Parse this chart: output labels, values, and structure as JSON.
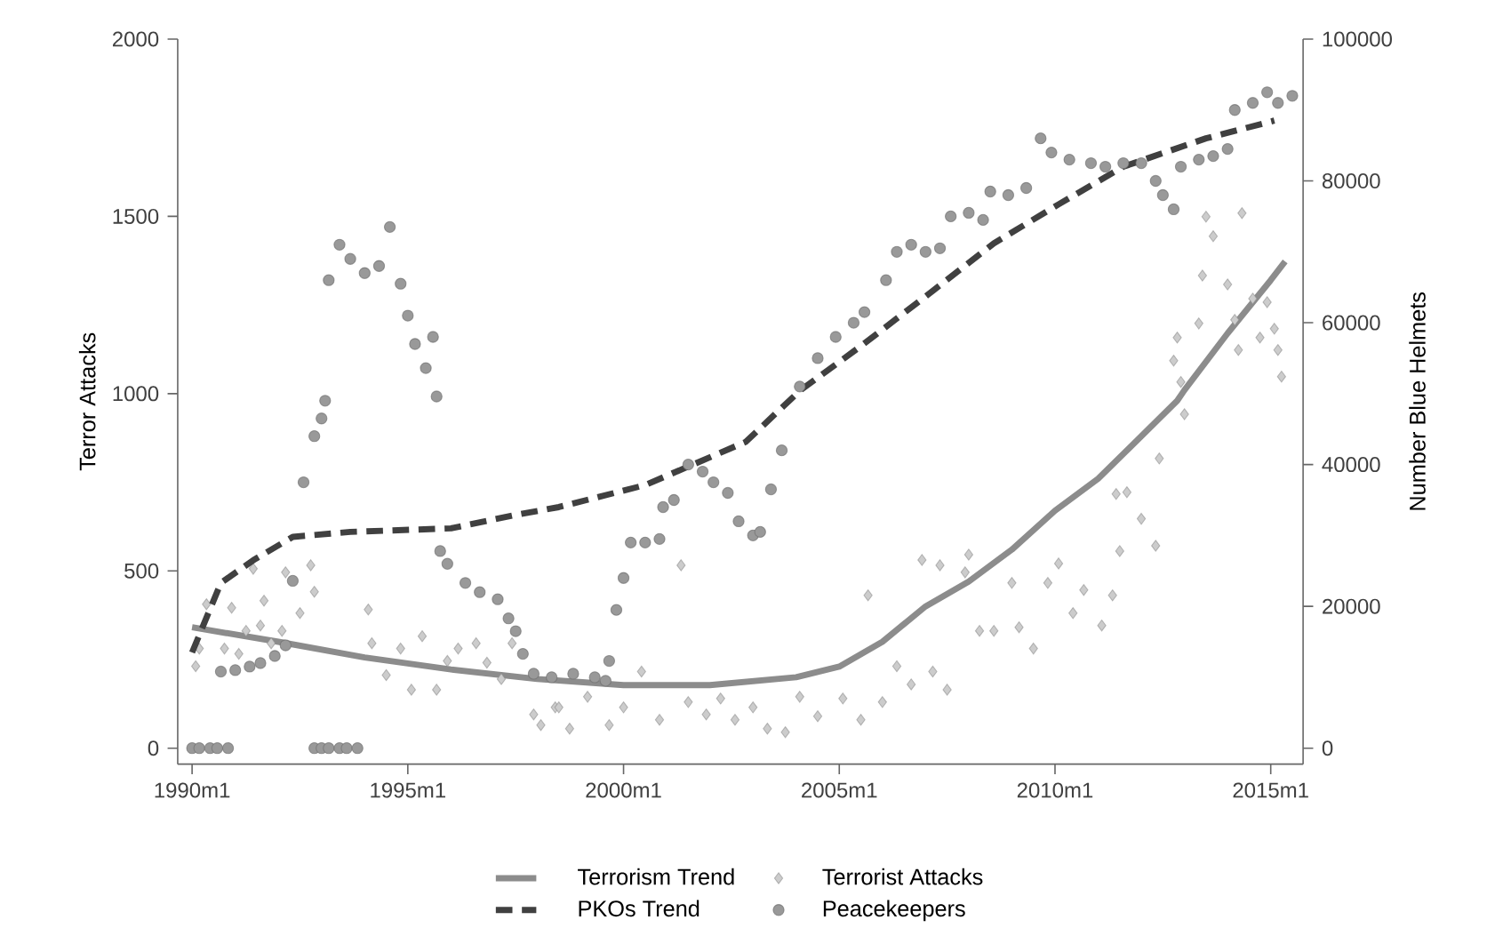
{
  "chart_data": {
    "type": "line",
    "ylabel": "Terror Attacks",
    "y2label": "Number Blue Helmets",
    "xlim": [
      "1989-09",
      "2015-10"
    ],
    "ylim": [
      -45,
      2000
    ],
    "y2lim": [
      -2250,
      100000
    ],
    "xticks": [
      {
        "value": "1990-01",
        "label": "1990m1"
      },
      {
        "value": "1995-01",
        "label": "1995m1"
      },
      {
        "value": "2000-01",
        "label": "2000m1"
      },
      {
        "value": "2005-01",
        "label": "2005m1"
      },
      {
        "value": "2010-01",
        "label": "2010m1"
      },
      {
        "value": "2015-01",
        "label": "2015m1"
      }
    ],
    "yticks": [
      0,
      500,
      1000,
      1500,
      2000
    ],
    "y2ticks": [
      0,
      20000,
      40000,
      60000,
      80000,
      100000
    ],
    "grid": false,
    "legend": "bottom",
    "series": [
      {
        "name": "Terrorism Trend",
        "axis": "y",
        "color": "#8c8c8c",
        "line_style": "solid",
        "x": [
          "1990-01",
          "1992-01",
          "1994-01",
          "1996-01",
          "1998-01",
          "2000-01",
          "2002-01",
          "2004-01",
          "2005-01",
          "2006-01",
          "2007-01",
          "2008-01",
          "2009-01",
          "2010-01",
          "2011-01",
          "2012-01",
          "2012-11",
          "2013-01",
          "2014-01",
          "2015-01",
          "2015-05"
        ],
        "values": [
          341,
          300,
          256,
          222,
          195,
          178,
          178,
          200,
          230,
          300,
          400,
          470,
          560,
          670,
          760,
          880,
          980,
          1010,
          1170,
          1320,
          1373
        ]
      },
      {
        "name": "Terrorist Attacks",
        "type": "scatter",
        "axis": "y",
        "color": "#cccccc",
        "marker": "diamond",
        "x": [
          "1990-02",
          "1990-03",
          "1990-05",
          "1990-10",
          "1990-12",
          "1991-02",
          "1991-04",
          "1991-06",
          "1991-08",
          "1991-09",
          "1991-11",
          "1992-02",
          "1992-03",
          "1992-07",
          "1992-10",
          "1992-11",
          "1994-02",
          "1994-03",
          "1994-07",
          "1994-11",
          "1995-02",
          "1995-05",
          "1995-09",
          "1995-12",
          "1996-03",
          "1996-08",
          "1996-11",
          "1997-03",
          "1997-06",
          "1997-12",
          "1998-02",
          "1998-06",
          "1998-07",
          "1998-10",
          "1999-03",
          "1999-09",
          "2000-01",
          "2000-06",
          "2000-11",
          "2001-05",
          "2001-07",
          "2001-12",
          "2002-04",
          "2002-08",
          "2003-01",
          "2003-05",
          "2003-10",
          "2004-02",
          "2004-07",
          "2005-02",
          "2005-07",
          "2005-09",
          "2006-01",
          "2006-05",
          "2006-09",
          "2006-12",
          "2007-03",
          "2007-05",
          "2007-07",
          "2007-12",
          "2008-01",
          "2008-04",
          "2008-08",
          "2009-01",
          "2009-03",
          "2009-07",
          "2009-11",
          "2010-02",
          "2010-06",
          "2010-09",
          "2011-02",
          "2011-05",
          "2011-06",
          "2011-07",
          "2011-09",
          "2012-01",
          "2012-05",
          "2012-06",
          "2012-10",
          "2012-11",
          "2012-12",
          "2013-01",
          "2013-05",
          "2013-06",
          "2013-07",
          "2013-09",
          "2014-01",
          "2014-03",
          "2014-04",
          "2014-05",
          "2014-08",
          "2014-10",
          "2014-12",
          "2015-02",
          "2015-03",
          "2015-04"
        ],
        "values": [
          231,
          281,
          406,
          281,
          396,
          266,
          331,
          506,
          346,
          416,
          296,
          331,
          496,
          381,
          516,
          441,
          391,
          296,
          206,
          281,
          165,
          316,
          165,
          246,
          281,
          296,
          241,
          195,
          296,
          95,
          65,
          115,
          115,
          55,
          145,
          65,
          115,
          216,
          80,
          516,
          130,
          95,
          140,
          80,
          115,
          55,
          45,
          145,
          90,
          140,
          80,
          431,
          130,
          231,
          180,
          531,
          216,
          516,
          165,
          496,
          546,
          331,
          331,
          466,
          341,
          281,
          466,
          521,
          381,
          446,
          346,
          431,
          717,
          556,
          722,
          647,
          571,
          817,
          1093,
          1158,
          1033,
          942,
          1198,
          1333,
          1499,
          1444,
          1308,
          1208,
          1123,
          1509,
          1268,
          1158,
          1258,
          1183,
          1123,
          1048
        ]
      },
      {
        "name": "PKOs Trend",
        "axis": "y2",
        "color": "#404040",
        "line_style": "dashed",
        "x": [
          "1990-01",
          "1990-09",
          "1991-06",
          "1992-05",
          "1993-09",
          "1996-01",
          "1997-06",
          "1998-07",
          "2000-07",
          "2002-11",
          "2004-02",
          "2005-07",
          "2007-03",
          "2008-08",
          "2010-02",
          "2011-08",
          "2013-07",
          "2015-02"
        ],
        "values": [
          13500,
          23300,
          26500,
          29800,
          30500,
          31000,
          32800,
          34000,
          37100,
          43200,
          50400,
          56700,
          64500,
          71200,
          76700,
          82000,
          86000,
          88500
        ]
      },
      {
        "name": "Peacekeepers",
        "type": "scatter",
        "axis": "y2",
        "color": "#999999",
        "marker": "circle",
        "x": [
          "1990-01",
          "1990-03",
          "1990-06",
          "1990-08",
          "1990-11",
          "1990-09",
          "1991-01",
          "1991-05",
          "1991-08",
          "1991-12",
          "1992-03",
          "1992-05",
          "1992-08",
          "1992-11",
          "1993-01",
          "1993-02",
          "1992-11",
          "1993-01",
          "1993-03",
          "1993-06",
          "1993-08",
          "1993-11",
          "1993-03",
          "1993-06",
          "1993-09",
          "1994-01",
          "1994-05",
          "1994-08",
          "1994-11",
          "1995-01",
          "1995-03",
          "1995-06",
          "1995-08",
          "1995-09",
          "1995-10",
          "1995-12",
          "1996-05",
          "1996-09",
          "1997-02",
          "1997-05",
          "1997-07",
          "1997-09",
          "1997-12",
          "1998-05",
          "1998-11",
          "1999-05",
          "1999-08",
          "1999-09",
          "1999-11",
          "2000-01",
          "2000-03",
          "2000-07",
          "2000-11",
          "2000-12",
          "2001-03",
          "2001-07",
          "2001-11",
          "2002-02",
          "2002-06",
          "2002-09",
          "2003-01",
          "2003-03",
          "2003-06",
          "2003-09",
          "2004-02",
          "2004-07",
          "2004-12",
          "2005-05",
          "2005-08",
          "2006-02",
          "2006-05",
          "2006-09",
          "2007-01",
          "2007-05",
          "2007-08",
          "2008-01",
          "2008-05",
          "2008-07",
          "2008-12",
          "2009-05",
          "2009-09",
          "2009-12",
          "2010-05",
          "2010-11",
          "2011-03",
          "2011-08",
          "2012-01",
          "2012-05",
          "2012-07",
          "2012-10",
          "2012-12",
          "2013-05",
          "2013-09",
          "2014-01",
          "2014-03",
          "2014-08",
          "2014-12",
          "2015-03",
          "2015-07"
        ],
        "values": [
          0,
          0,
          0,
          0,
          0,
          10800,
          11000,
          11500,
          12000,
          13000,
          14500,
          23600,
          37500,
          44000,
          46500,
          49000,
          0,
          0,
          0,
          0,
          0,
          0,
          66000,
          71000,
          69000,
          67000,
          68000,
          73500,
          65500,
          61000,
          57000,
          53600,
          58000,
          49600,
          27800,
          26000,
          23300,
          22000,
          21000,
          18300,
          16500,
          13300,
          10500,
          10000,
          10500,
          10000,
          9500,
          12300,
          19500,
          24000,
          29000,
          29000,
          29500,
          34000,
          35000,
          40000,
          39000,
          37500,
          36000,
          32000,
          30000,
          30500,
          36500,
          42000,
          51000,
          55000,
          58000,
          60000,
          61500,
          66000,
          70000,
          71000,
          70000,
          70500,
          75000,
          75500,
          74500,
          78500,
          78000,
          79000,
          86000,
          84000,
          83000,
          82500,
          82000,
          82500,
          82500,
          80000,
          78000,
          76000,
          82000,
          83000,
          83500,
          84500,
          90000,
          91000,
          92500,
          91000,
          92000
        ]
      }
    ]
  }
}
